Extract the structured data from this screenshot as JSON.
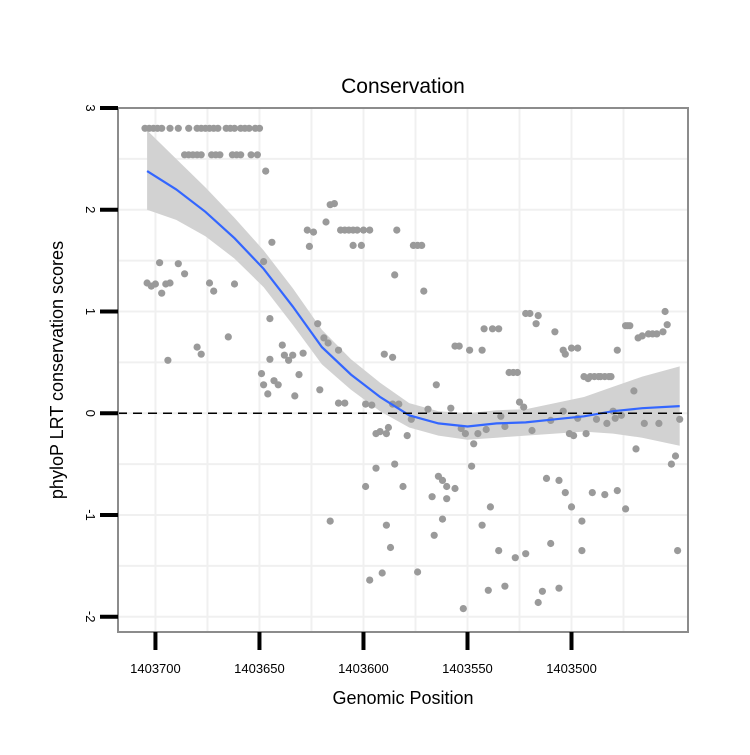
{
  "chart_data": {
    "type": "scatter",
    "title": "Conservation",
    "xlabel": "Genomic Position",
    "ylabel": "phyloP LRT conservation scores",
    "x_reversed": true,
    "xlim": [
      1403718,
      1403444
    ],
    "ylim": [
      -2.15,
      3.0
    ],
    "xticks": [
      1403700,
      1403650,
      1403600,
      1403550,
      1403500
    ],
    "yticks": [
      -2,
      -1,
      0,
      1,
      2,
      3
    ],
    "reference_line": {
      "y": 0,
      "style": "dashed"
    },
    "colors": {
      "points": "#9a9a9a",
      "smooth_line": "#3366ff",
      "confidence_band": "#d2d2d2",
      "panel_border": "#8c8c8c",
      "grid": "#f0f0f0",
      "axis": "#000000"
    },
    "points": [
      [
        1403705,
        2.8
      ],
      [
        1403703,
        2.8
      ],
      [
        1403701,
        2.8
      ],
      [
        1403699,
        2.8
      ],
      [
        1403697,
        2.8
      ],
      [
        1403693,
        2.8
      ],
      [
        1403689,
        2.8
      ],
      [
        1403684,
        2.8
      ],
      [
        1403680,
        2.8
      ],
      [
        1403678,
        2.8
      ],
      [
        1403676,
        2.8
      ],
      [
        1403674,
        2.8
      ],
      [
        1403672,
        2.8
      ],
      [
        1403670,
        2.8
      ],
      [
        1403666,
        2.8
      ],
      [
        1403664,
        2.8
      ],
      [
        1403662,
        2.8
      ],
      [
        1403659,
        2.8
      ],
      [
        1403657,
        2.8
      ],
      [
        1403655,
        2.8
      ],
      [
        1403652,
        2.8
      ],
      [
        1403650,
        2.8
      ],
      [
        1403686,
        2.54
      ],
      [
        1403684,
        2.54
      ],
      [
        1403682,
        2.54
      ],
      [
        1403680,
        2.54
      ],
      [
        1403678,
        2.54
      ],
      [
        1403673,
        2.54
      ],
      [
        1403671,
        2.54
      ],
      [
        1403669,
        2.54
      ],
      [
        1403663,
        2.54
      ],
      [
        1403661,
        2.54
      ],
      [
        1403659,
        2.54
      ],
      [
        1403654,
        2.54
      ],
      [
        1403651,
        2.54
      ],
      [
        1403647,
        2.38
      ],
      [
        1403704,
        1.28
      ],
      [
        1403702,
        1.25
      ],
      [
        1403700,
        1.27
      ],
      [
        1403698,
        1.48
      ],
      [
        1403697,
        1.18
      ],
      [
        1403695,
        1.27
      ],
      [
        1403693,
        1.28
      ],
      [
        1403689,
        1.47
      ],
      [
        1403686,
        1.37
      ],
      [
        1403680,
        0.65
      ],
      [
        1403678,
        0.58
      ],
      [
        1403674,
        1.28
      ],
      [
        1403672,
        1.2
      ],
      [
        1403665,
        0.75
      ],
      [
        1403662,
        1.27
      ],
      [
        1403694,
        0.52
      ],
      [
        1403648,
        1.49
      ],
      [
        1403644,
        1.68
      ],
      [
        1403645,
        0.93
      ],
      [
        1403649,
        0.39
      ],
      [
        1403648,
        0.28
      ],
      [
        1403646,
        0.19
      ],
      [
        1403645,
        0.53
      ],
      [
        1403643,
        0.32
      ],
      [
        1403641,
        0.28
      ],
      [
        1403639,
        0.67
      ],
      [
        1403638,
        0.57
      ],
      [
        1403636,
        0.52
      ],
      [
        1403634,
        0.57
      ],
      [
        1403633,
        0.17
      ],
      [
        1403631,
        0.38
      ],
      [
        1403629,
        0.59
      ],
      [
        1403627,
        1.8
      ],
      [
        1403626,
        1.64
      ],
      [
        1403624,
        1.78
      ],
      [
        1403622,
        0.88
      ],
      [
        1403621,
        0.23
      ],
      [
        1403619,
        0.74
      ],
      [
        1403617,
        0.69
      ],
      [
        1403618,
        1.88
      ],
      [
        1403616,
        2.05
      ],
      [
        1403614,
        2.06
      ],
      [
        1403612,
        0.62
      ],
      [
        1403612,
        0.1
      ],
      [
        1403609,
        0.1
      ],
      [
        1403611,
        1.8
      ],
      [
        1403609,
        1.8
      ],
      [
        1403607,
        1.8
      ],
      [
        1403605,
        1.8
      ],
      [
        1403605,
        1.65
      ],
      [
        1403603,
        1.8
      ],
      [
        1403601,
        1.65
      ],
      [
        1403600,
        1.8
      ],
      [
        1403597,
        1.8
      ],
      [
        1403599,
        0.09
      ],
      [
        1403596,
        0.08
      ],
      [
        1403594,
        -0.2
      ],
      [
        1403592,
        -0.18
      ],
      [
        1403590,
        0.58
      ],
      [
        1403588,
        -0.14
      ],
      [
        1403586,
        0.55
      ],
      [
        1403584,
        1.8
      ],
      [
        1403586,
        0.09
      ],
      [
        1403585,
        -0.5
      ],
      [
        1403616,
        -1.06
      ],
      [
        1403589,
        -0.2
      ],
      [
        1403585,
        1.36
      ],
      [
        1403583,
        0.09
      ],
      [
        1403581,
        -0.72
      ],
      [
        1403579,
        -0.22
      ],
      [
        1403577,
        -0.06
      ],
      [
        1403576,
        1.65
      ],
      [
        1403574,
        1.65
      ],
      [
        1403572,
        1.65
      ],
      [
        1403571,
        1.2
      ],
      [
        1403569,
        0.04
      ],
      [
        1403567,
        -0.82
      ],
      [
        1403565,
        0.28
      ],
      [
        1403564,
        -0.62
      ],
      [
        1403562,
        -0.66
      ],
      [
        1403560,
        -0.84
      ],
      [
        1403560,
        -0.72
      ],
      [
        1403558,
        0.05
      ],
      [
        1403556,
        0.66
      ],
      [
        1403554,
        0.66
      ],
      [
        1403553,
        -0.15
      ],
      [
        1403551,
        -0.2
      ],
      [
        1403549,
        0.62
      ],
      [
        1403547,
        -0.3
      ],
      [
        1403545,
        -0.2
      ],
      [
        1403543,
        0.62
      ],
      [
        1403542,
        0.83
      ],
      [
        1403541,
        -0.16
      ],
      [
        1403539,
        -0.92
      ],
      [
        1403538,
        0.83
      ],
      [
        1403535,
        0.83
      ],
      [
        1403534,
        -0.03
      ],
      [
        1403532,
        -0.13
      ],
      [
        1403530,
        0.4
      ],
      [
        1403528,
        0.4
      ],
      [
        1403526,
        0.4
      ],
      [
        1403525,
        0.11
      ],
      [
        1403523,
        0.06
      ],
      [
        1403522,
        0.98
      ],
      [
        1403520,
        0.98
      ],
      [
        1403519,
        -0.17
      ],
      [
        1403517,
        0.88
      ],
      [
        1403516,
        0.96
      ],
      [
        1403514,
        -1.75
      ],
      [
        1403512,
        -0.64
      ],
      [
        1403510,
        -0.07
      ],
      [
        1403508,
        0.8
      ],
      [
        1403506,
        -1.72
      ],
      [
        1403504,
        0.62
      ],
      [
        1403503,
        0.58
      ],
      [
        1403501,
        -0.2
      ],
      [
        1403500,
        0.64
      ],
      [
        1403499,
        -0.22
      ],
      [
        1403497,
        0.64
      ],
      [
        1403495,
        -1.06
      ],
      [
        1403494,
        0.36
      ],
      [
        1403492,
        0.34
      ],
      [
        1403491,
        0.36
      ],
      [
        1403489,
        0.36
      ],
      [
        1403487,
        0.36
      ],
      [
        1403486,
        0.36
      ],
      [
        1403484,
        0.36
      ],
      [
        1403482,
        0.36
      ],
      [
        1403481,
        0.36
      ],
      [
        1403479,
        -0.05
      ],
      [
        1403478,
        0.62
      ],
      [
        1403476,
        -0.02
      ],
      [
        1403474,
        0.86
      ],
      [
        1403473,
        0.86
      ],
      [
        1403472,
        0.86
      ],
      [
        1403470,
        0.22
      ],
      [
        1403469,
        -0.35
      ],
      [
        1403468,
        0.74
      ],
      [
        1403466,
        0.76
      ],
      [
        1403465,
        -0.1
      ],
      [
        1403463,
        0.78
      ],
      [
        1403461,
        0.78
      ],
      [
        1403459,
        0.78
      ],
      [
        1403458,
        -0.1
      ],
      [
        1403456,
        0.8
      ],
      [
        1403455,
        1.0
      ],
      [
        1403454,
        0.87
      ],
      [
        1403452,
        -0.5
      ],
      [
        1403450,
        -0.42
      ],
      [
        1403449,
        -1.35
      ],
      [
        1403448,
        -0.06
      ],
      [
        1403599,
        -0.72
      ],
      [
        1403597,
        -1.64
      ],
      [
        1403594,
        -0.54
      ],
      [
        1403591,
        -1.57
      ],
      [
        1403589,
        -1.1
      ],
      [
        1403587,
        -1.32
      ],
      [
        1403574,
        -1.56
      ],
      [
        1403566,
        -1.2
      ],
      [
        1403562,
        -1.04
      ],
      [
        1403556,
        -0.74
      ],
      [
        1403552,
        -1.92
      ],
      [
        1403548,
        -0.52
      ],
      [
        1403543,
        -1.1
      ],
      [
        1403540,
        -1.74
      ],
      [
        1403535,
        -1.35
      ],
      [
        1403532,
        -1.7
      ],
      [
        1403527,
        -1.42
      ],
      [
        1403522,
        -1.38
      ],
      [
        1403516,
        -1.86
      ],
      [
        1403510,
        -1.28
      ],
      [
        1403506,
        -0.66
      ],
      [
        1403503,
        -0.78
      ],
      [
        1403500,
        -0.92
      ],
      [
        1403495,
        -1.35
      ],
      [
        1403490,
        -0.78
      ],
      [
        1403484,
        -0.8
      ],
      [
        1403478,
        -0.76
      ],
      [
        1403474,
        -0.94
      ],
      [
        1403504,
        0.02
      ],
      [
        1403497,
        -0.05
      ],
      [
        1403493,
        -0.2
      ],
      [
        1403488,
        -0.06
      ],
      [
        1403483,
        -0.1
      ],
      [
        1403480,
        0.02
      ]
    ],
    "smooth_curve": [
      [
        1403704,
        2.38
      ],
      [
        1403690,
        2.2
      ],
      [
        1403676,
        1.98
      ],
      [
        1403662,
        1.72
      ],
      [
        1403648,
        1.42
      ],
      [
        1403634,
        1.05
      ],
      [
        1403620,
        0.65
      ],
      [
        1403606,
        0.38
      ],
      [
        1403592,
        0.16
      ],
      [
        1403578,
        -0.02
      ],
      [
        1403564,
        -0.1
      ],
      [
        1403550,
        -0.13
      ],
      [
        1403536,
        -0.1
      ],
      [
        1403522,
        -0.09
      ],
      [
        1403508,
        -0.06
      ],
      [
        1403494,
        -0.03
      ],
      [
        1403480,
        0.02
      ],
      [
        1403466,
        0.05
      ],
      [
        1403448,
        0.07
      ]
    ],
    "band_upper": [
      [
        1403704,
        2.78
      ],
      [
        1403690,
        2.5
      ],
      [
        1403676,
        2.22
      ],
      [
        1403662,
        1.92
      ],
      [
        1403648,
        1.6
      ],
      [
        1403634,
        1.23
      ],
      [
        1403620,
        0.82
      ],
      [
        1403606,
        0.53
      ],
      [
        1403592,
        0.3
      ],
      [
        1403578,
        0.1
      ],
      [
        1403564,
        0.02
      ],
      [
        1403550,
        0.0
      ],
      [
        1403536,
        0.03
      ],
      [
        1403522,
        0.04
      ],
      [
        1403508,
        0.1
      ],
      [
        1403494,
        0.16
      ],
      [
        1403480,
        0.26
      ],
      [
        1403466,
        0.36
      ],
      [
        1403448,
        0.46
      ]
    ],
    "band_lower": [
      [
        1403704,
        2.0
      ],
      [
        1403690,
        1.9
      ],
      [
        1403676,
        1.74
      ],
      [
        1403662,
        1.52
      ],
      [
        1403648,
        1.24
      ],
      [
        1403634,
        0.87
      ],
      [
        1403620,
        0.48
      ],
      [
        1403606,
        0.23
      ],
      [
        1403592,
        0.02
      ],
      [
        1403578,
        -0.14
      ],
      [
        1403564,
        -0.22
      ],
      [
        1403550,
        -0.26
      ],
      [
        1403536,
        -0.24
      ],
      [
        1403522,
        -0.22
      ],
      [
        1403508,
        -0.2
      ],
      [
        1403494,
        -0.18
      ],
      [
        1403480,
        -0.2
      ],
      [
        1403466,
        -0.24
      ],
      [
        1403448,
        -0.32
      ]
    ]
  }
}
